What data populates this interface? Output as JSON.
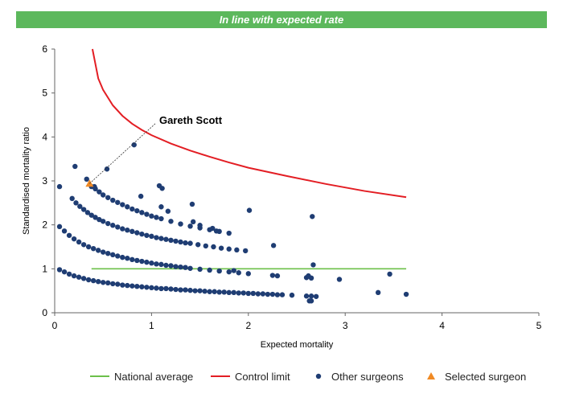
{
  "header": {
    "status_text": "In line with expected rate",
    "status_color": "#5cb85c"
  },
  "chart_data": {
    "type": "scatter",
    "title": "",
    "xlabel": "Expected mortality",
    "ylabel": "Standardised mortality ratio",
    "xlim": [
      0,
      5
    ],
    "ylim": [
      0,
      6
    ],
    "xticks": [
      0,
      1,
      2,
      3,
      4,
      5
    ],
    "yticks": [
      0,
      1,
      2,
      3,
      4,
      5,
      6
    ],
    "grid": false,
    "legend_position": "bottom",
    "annotation": {
      "label": "Gareth Scott",
      "x": 1.08,
      "y": 4.3
    },
    "series": [
      {
        "name": "National average",
        "kind": "line",
        "color": "#6cc04a",
        "x": [
          0.38,
          3.63
        ],
        "y": [
          1,
          1
        ]
      },
      {
        "name": "Control limit",
        "kind": "line",
        "color": "#e31e24",
        "x": [
          0.39,
          0.45,
          0.5,
          0.6,
          0.7,
          0.8,
          0.9,
          1.0,
          1.2,
          1.4,
          1.6,
          1.8,
          2.0,
          2.4,
          2.8,
          3.2,
          3.63
        ],
        "y": [
          6.0,
          5.33,
          5.07,
          4.72,
          4.48,
          4.3,
          4.16,
          4.04,
          3.85,
          3.69,
          3.55,
          3.42,
          3.3,
          3.11,
          2.93,
          2.77,
          2.63
        ]
      },
      {
        "name": "Other surgeons",
        "kind": "scatter",
        "color": "#1f3d73",
        "x": [
          0.05,
          0.1,
          0.15,
          0.2,
          0.25,
          0.3,
          0.35,
          0.4,
          0.45,
          0.5,
          0.55,
          0.6,
          0.65,
          0.7,
          0.75,
          0.8,
          0.85,
          0.9,
          0.95,
          1.0,
          1.05,
          1.1,
          1.15,
          1.2,
          1.25,
          1.3,
          1.35,
          1.4,
          1.45,
          1.5,
          1.55,
          1.6,
          1.65,
          1.7,
          1.75,
          1.8,
          1.85,
          1.9,
          1.95,
          2.0,
          2.05,
          2.1,
          2.15,
          2.2,
          2.25,
          2.3,
          2.35,
          2.45,
          2.6,
          2.65,
          2.7,
          0.05,
          0.1,
          0.15,
          0.2,
          0.25,
          0.3,
          0.35,
          0.4,
          0.45,
          0.5,
          0.55,
          0.6,
          0.65,
          0.7,
          0.75,
          0.8,
          0.85,
          0.9,
          0.95,
          1.0,
          1.05,
          1.1,
          1.15,
          1.2,
          1.25,
          1.3,
          1.35,
          1.4,
          1.5,
          1.6,
          1.7,
          1.8,
          1.9,
          2.0,
          2.25,
          2.3,
          2.6,
          2.65,
          0.18,
          0.22,
          0.26,
          0.3,
          0.34,
          0.38,
          0.42,
          0.46,
          0.5,
          0.55,
          0.6,
          0.65,
          0.7,
          0.75,
          0.8,
          0.85,
          0.9,
          0.95,
          1.0,
          1.05,
          1.1,
          1.15,
          1.2,
          1.25,
          1.3,
          1.35,
          1.4,
          1.48,
          1.56,
          1.64,
          1.72,
          1.8,
          1.88,
          1.97,
          0.38,
          0.42,
          0.46,
          0.5,
          0.55,
          0.6,
          0.65,
          0.7,
          0.75,
          0.8,
          0.85,
          0.9,
          0.95,
          1.0,
          1.05,
          1.1,
          1.2,
          1.3,
          1.4,
          1.5,
          1.6,
          1.7,
          1.8,
          0.05,
          0.21,
          0.33,
          0.41,
          0.54,
          0.82,
          0.89,
          1.08,
          1.11,
          1.1,
          1.17,
          1.42,
          1.43,
          1.5,
          1.63,
          1.67,
          1.85,
          2.01,
          2.26,
          2.66,
          2.67,
          2.94,
          3.34,
          3.46,
          3.63,
          2.63,
          2.65,
          2.62
        ],
        "y": [
          0.98,
          0.93,
          0.88,
          0.84,
          0.81,
          0.78,
          0.75,
          0.73,
          0.71,
          0.69,
          0.68,
          0.66,
          0.65,
          0.63,
          0.62,
          0.61,
          0.6,
          0.59,
          0.58,
          0.57,
          0.56,
          0.55,
          0.55,
          0.54,
          0.53,
          0.52,
          0.52,
          0.51,
          0.5,
          0.5,
          0.49,
          0.48,
          0.48,
          0.47,
          0.47,
          0.46,
          0.46,
          0.45,
          0.45,
          0.44,
          0.44,
          0.43,
          0.43,
          0.42,
          0.42,
          0.41,
          0.41,
          0.4,
          0.38,
          0.38,
          0.37,
          1.96,
          1.86,
          1.76,
          1.68,
          1.61,
          1.55,
          1.5,
          1.46,
          1.42,
          1.38,
          1.35,
          1.32,
          1.29,
          1.26,
          1.24,
          1.21,
          1.19,
          1.17,
          1.15,
          1.13,
          1.11,
          1.1,
          1.08,
          1.07,
          1.05,
          1.04,
          1.03,
          1.01,
          0.99,
          0.97,
          0.95,
          0.93,
          0.91,
          0.89,
          0.85,
          0.84,
          0.8,
          0.79,
          2.6,
          2.5,
          2.42,
          2.35,
          2.28,
          2.22,
          2.17,
          2.12,
          2.08,
          2.03,
          1.99,
          1.95,
          1.91,
          1.88,
          1.85,
          1.82,
          1.79,
          1.76,
          1.74,
          1.71,
          1.69,
          1.67,
          1.65,
          1.63,
          1.61,
          1.59,
          1.58,
          1.55,
          1.52,
          1.5,
          1.47,
          1.45,
          1.43,
          1.41,
          2.87,
          2.82,
          2.75,
          2.68,
          2.62,
          2.56,
          2.51,
          2.46,
          2.41,
          2.36,
          2.32,
          2.28,
          2.24,
          2.2,
          2.17,
          2.14,
          2.08,
          2.02,
          1.97,
          1.93,
          1.89,
          1.85,
          1.81,
          2.87,
          3.33,
          3.04,
          2.87,
          3.27,
          3.82,
          2.65,
          2.89,
          2.83,
          2.41,
          2.31,
          2.47,
          2.07,
          1.99,
          1.92,
          1.86,
          0.96,
          2.33,
          1.53,
          2.19,
          1.09,
          0.76,
          0.46,
          0.88,
          0.42,
          0.27,
          0.27,
          0.84
        ]
      },
      {
        "name": "Selected surgeon",
        "kind": "marker",
        "color": "#f08a24",
        "x": [
          0.36
        ],
        "y": [
          2.94
        ]
      }
    ]
  }
}
